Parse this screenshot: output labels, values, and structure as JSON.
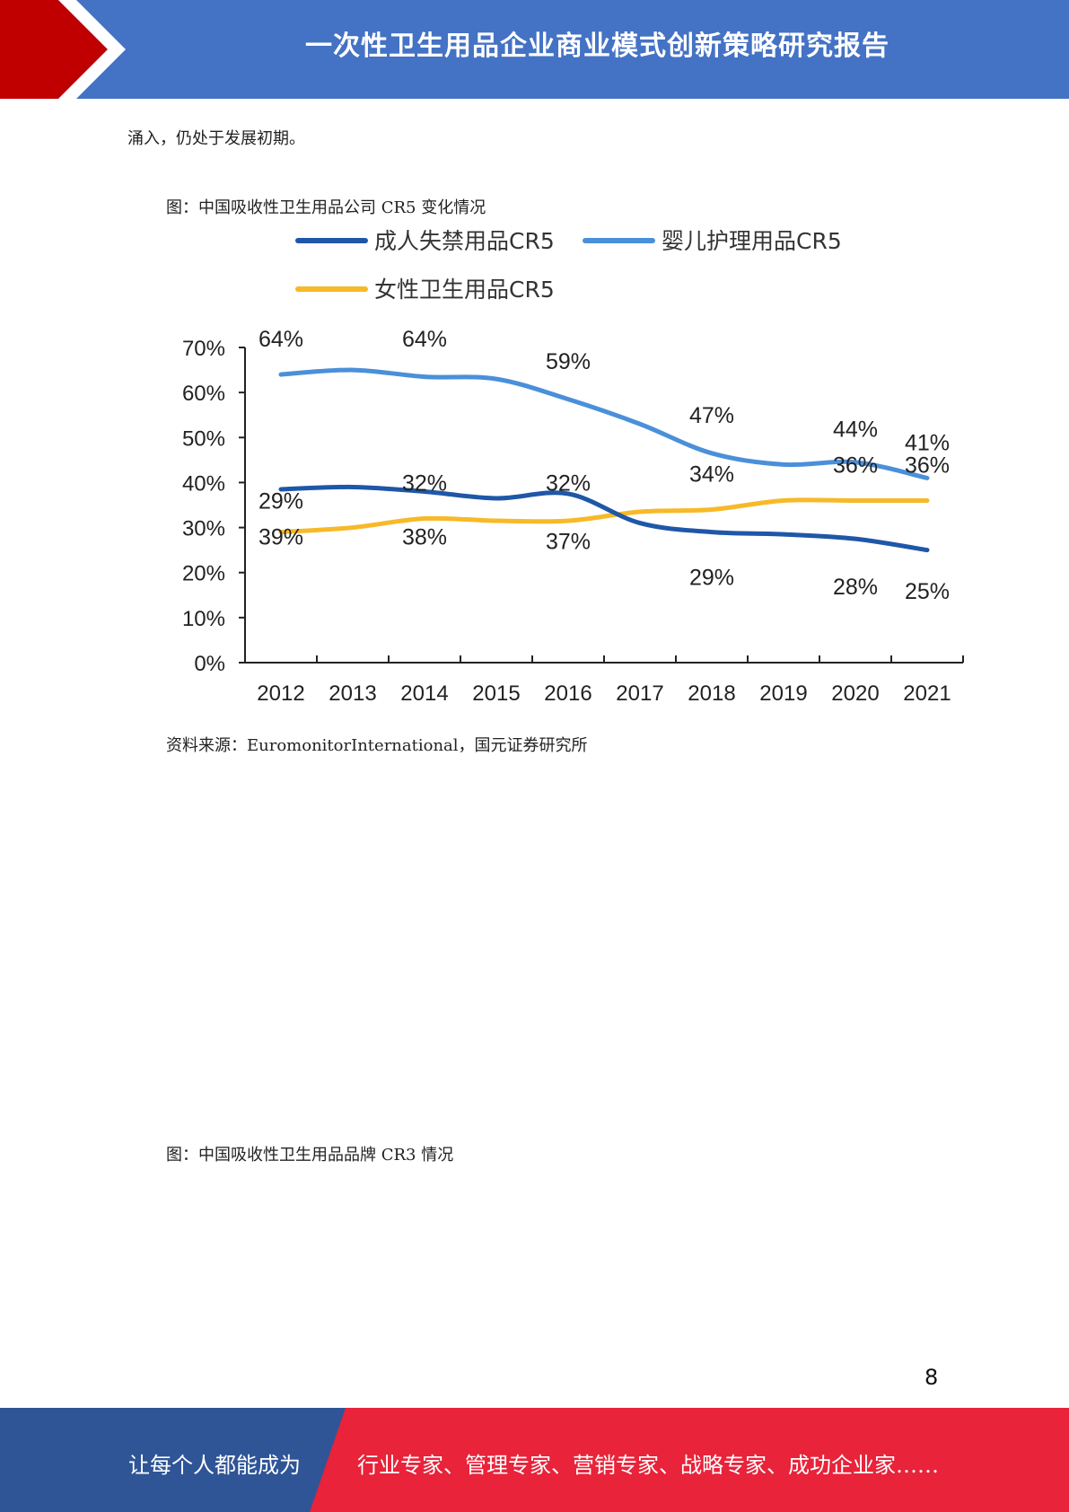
{
  "header": {
    "title": "一次性卫生用品企业商业模式创新策略研究报告",
    "colors": {
      "bar": "#4472c4",
      "accent": "#c00000"
    }
  },
  "body": {
    "intro_text": "涌入，仍处于发展初期。",
    "figure1_caption": "图：中国吸收性卫生用品公司 CR5 变化情况",
    "figure1_source": "资料来源：EuromonitorInternational，国元证券研究所",
    "figure2_caption": "图：中国吸收性卫生用品品牌 CR3 情况"
  },
  "chart_data": {
    "type": "line",
    "categories": [
      "2012",
      "2013",
      "2014",
      "2015",
      "2016",
      "2017",
      "2018",
      "2019",
      "2020",
      "2021"
    ],
    "y_ticks": [
      "0%",
      "10%",
      "20%",
      "30%",
      "40%",
      "50%",
      "60%",
      "70%"
    ],
    "ylim": [
      0,
      70
    ],
    "series": [
      {
        "name": "成人失禁用品CR5",
        "color": "#1f57a8",
        "values": [
          38.5,
          39,
          38,
          36.5,
          37.5,
          31,
          29,
          28.5,
          27.5,
          25
        ]
      },
      {
        "name": "婴儿护理用品CR5",
        "color": "#4a90d9",
        "values": [
          64,
          65,
          63.5,
          63,
          58.5,
          53,
          46.5,
          44,
          44.5,
          41
        ]
      },
      {
        "name": "女性卫生用品CR5",
        "color": "#f7b928",
        "values": [
          29,
          30,
          32,
          31.5,
          31.5,
          33.5,
          34,
          36,
          36,
          36
        ]
      }
    ],
    "data_labels": [
      {
        "text": "64%",
        "x": "2012",
        "y": 72
      },
      {
        "text": "64%",
        "x": "2014",
        "y": 72
      },
      {
        "text": "59%",
        "x": "2016",
        "y": 67
      },
      {
        "text": "47%",
        "x": "2018",
        "y": 55
      },
      {
        "text": "44%",
        "x": "2020",
        "y": 52
      },
      {
        "text": "41%",
        "x": "2021",
        "y": 49
      },
      {
        "text": "29%",
        "x": "2012",
        "y": 36
      },
      {
        "text": "32%",
        "x": "2014",
        "y": 40
      },
      {
        "text": "32%",
        "x": "2016",
        "y": 40
      },
      {
        "text": "34%",
        "x": "2018",
        "y": 42
      },
      {
        "text": "36%",
        "x": "2020",
        "y": 44
      },
      {
        "text": "36%",
        "x": "2021",
        "y": 44
      },
      {
        "text": "39%",
        "x": "2012",
        "y": 28
      },
      {
        "text": "38%",
        "x": "2014",
        "y": 28
      },
      {
        "text": "37%",
        "x": "2016",
        "y": 27
      },
      {
        "text": "29%",
        "x": "2018",
        "y": 19
      },
      {
        "text": "28%",
        "x": "2020",
        "y": 17
      },
      {
        "text": "25%",
        "x": "2021",
        "y": 16
      }
    ]
  },
  "page_number": "8",
  "footer": {
    "left_text": "让每个人都能成为",
    "right_text": "行业专家、管理专家、营销专家、战略专家、成功企业家……",
    "colors": {
      "left": "#2f5597",
      "right": "#e8233a"
    }
  }
}
